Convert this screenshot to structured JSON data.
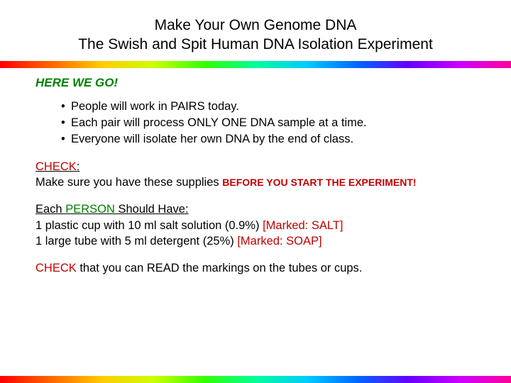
{
  "title_line1": "Make Your Own Genome DNA",
  "title_line2": "The Swish and Spit Human DNA Isolation Experiment",
  "here_we_go": "HERE WE GO!",
  "bullets": [
    "People will work in PAIRS today.",
    "Each pair will process ONLY ONE DNA sample at a time.",
    "Everyone will isolate her own DNA by the end of class."
  ],
  "check_label": "CHECK",
  "check_colon": ":",
  "check_body": "Make sure you have these supplies ",
  "before_start": "BEFORE YOU START THE EXPERIMENT!",
  "each_prefix": "Each ",
  "person_word": "PERSON",
  "each_suffix": " Should Have:",
  "supply1_a": "1 plastic cup with 10 ml salt solution (0.9%) ",
  "supply1_b": "[Marked: SALT]",
  "supply2_a": "1 large tube with 5 ml detergent (25%) ",
  "supply2_b": "[Marked: SOAP]",
  "check2_label": "CHECK",
  "check2_rest": " that you can READ the markings on the tubes or cups.",
  "colors": {
    "red": "#c00000",
    "green": "#008000",
    "text": "#000000",
    "bg": "#ffffff"
  },
  "rainbow_stops": [
    "#ff0000",
    "#ff6600",
    "#ffcc00",
    "#ccff00",
    "#33ff00",
    "#00ff99",
    "#00ccff",
    "#0066ff",
    "#6600ff",
    "#cc00ff",
    "#ff0099"
  ]
}
